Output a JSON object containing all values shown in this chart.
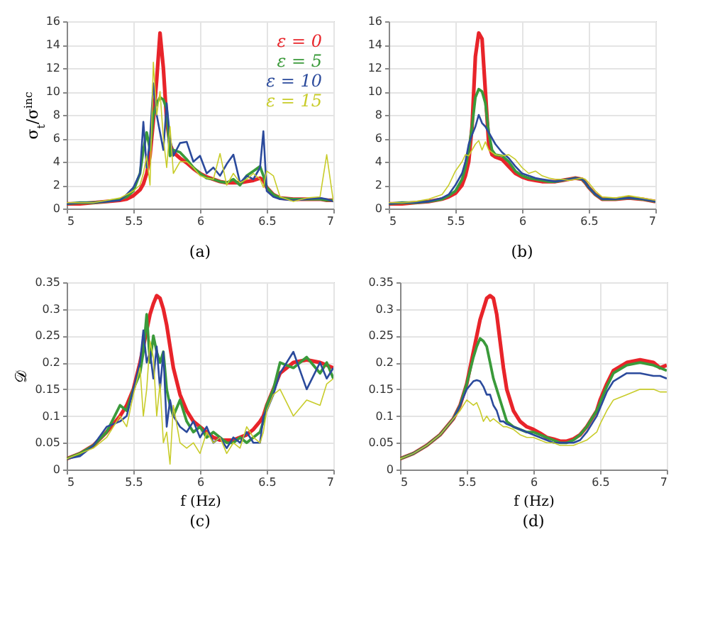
{
  "chart_data": [
    {
      "type": "line",
      "title": "(a)",
      "ylabel": "σ$_{t}$/σ$^{inc}$",
      "xlim": [
        5,
        7
      ],
      "xticks": [
        5,
        5.5,
        6,
        6.5,
        7
      ],
      "ylim": [
        0,
        16
      ],
      "yticks": [
        0,
        2,
        4,
        6,
        8,
        10,
        12,
        14,
        16
      ],
      "grid": true,
      "legend": "top right",
      "x": [
        5,
        5.1,
        5.2,
        5.3,
        5.4,
        5.45,
        5.5,
        5.55,
        5.575,
        5.6,
        5.625,
        5.65,
        5.675,
        5.7,
        5.725,
        5.75,
        5.775,
        5.8,
        5.85,
        5.9,
        5.95,
        6,
        6.05,
        6.1,
        6.15,
        6.2,
        6.25,
        6.3,
        6.35,
        6.4,
        6.45,
        6.475,
        6.5,
        6.55,
        6.6,
        6.7,
        6.8,
        6.9,
        6.95,
        7
      ],
      "series": [
        {
          "name": "ε = 0",
          "color": "#e8242a",
          "values": [
            0.4,
            0.4,
            0.5,
            0.6,
            0.7,
            0.8,
            1.1,
            1.6,
            2.1,
            3,
            4.5,
            7.5,
            11,
            15,
            12,
            7.5,
            5.5,
            4.8,
            4.3,
            3.9,
            3.4,
            3,
            2.7,
            2.5,
            2.3,
            2.2,
            2.2,
            2.2,
            2.3,
            2.4,
            2.6,
            2.4,
            1.8,
            1.2,
            0.9,
            0.8,
            0.8,
            0.8,
            0.7,
            0.7
          ]
        },
        {
          "name": "ε = 5",
          "color": "#3a9a3a",
          "values": [
            0.4,
            0.5,
            0.5,
            0.6,
            0.8,
            1,
            1.5,
            3,
            5,
            6.5,
            5,
            8,
            9,
            9.5,
            9.3,
            8.5,
            4.5,
            5,
            4.8,
            4.2,
            3.5,
            3,
            2.6,
            2.5,
            2.3,
            2.2,
            2.5,
            2,
            2.8,
            3.2,
            3.6,
            2.8,
            1.8,
            1.2,
            0.9,
            0.8,
            0.8,
            0.8,
            0.7,
            0.7
          ]
        },
        {
          "name": "ε = 10",
          "color": "#2b4a9c",
          "values": [
            0.4,
            0.5,
            0.5,
            0.6,
            0.7,
            1.2,
            1.8,
            3,
            7.4,
            3.5,
            6,
            10.7,
            8,
            6.5,
            5,
            9,
            6,
            4.5,
            5.6,
            5.7,
            4,
            4.5,
            3,
            3.5,
            2.8,
            3.8,
            4.6,
            2.2,
            2.8,
            2.5,
            3.5,
            6.6,
            1.5,
            1,
            0.8,
            0.7,
            0.8,
            0.9,
            0.8,
            0.6
          ]
        },
        {
          "name": "ε = 15",
          "color": "#c8cc2a",
          "values": [
            0.5,
            0.5,
            0.5,
            0.7,
            0.9,
            1.2,
            1.5,
            2,
            3,
            4.5,
            2,
            12.5,
            8,
            10,
            6,
            3.5,
            7,
            3,
            4,
            4,
            3.5,
            2.8,
            2.6,
            2.5,
            4.7,
            2,
            3,
            2.2,
            2.5,
            3,
            2.5,
            1.8,
            3.2,
            2.8,
            1,
            0.6,
            0.9,
            1,
            4.6,
            0.6
          ]
        }
      ]
    },
    {
      "type": "line",
      "title": "(b)",
      "xlim": [
        5,
        7
      ],
      "xticks": [
        5,
        5.5,
        6,
        6.5,
        7
      ],
      "ylim": [
        0,
        16
      ],
      "yticks": [
        0,
        2,
        4,
        6,
        8,
        10,
        12,
        14,
        16
      ],
      "grid": true,
      "x": [
        5,
        5.1,
        5.2,
        5.3,
        5.4,
        5.45,
        5.5,
        5.55,
        5.575,
        5.6,
        5.625,
        5.65,
        5.675,
        5.7,
        5.725,
        5.75,
        5.775,
        5.8,
        5.85,
        5.9,
        5.95,
        6,
        6.05,
        6.1,
        6.15,
        6.2,
        6.25,
        6.3,
        6.35,
        6.4,
        6.45,
        6.475,
        6.5,
        6.55,
        6.6,
        6.7,
        6.8,
        6.9,
        6.95,
        7
      ],
      "series": [
        {
          "color": "#e8242a",
          "values": [
            0.4,
            0.4,
            0.5,
            0.6,
            0.8,
            1,
            1.3,
            2,
            2.8,
            4,
            7,
            13,
            15,
            14.5,
            10,
            5.5,
            4.6,
            4.4,
            4.2,
            3.6,
            3,
            2.7,
            2.5,
            2.4,
            2.3,
            2.3,
            2.3,
            2.4,
            2.5,
            2.6,
            2.5,
            2.2,
            1.8,
            1.2,
            0.8,
            0.8,
            0.9,
            0.8,
            0.7,
            0.6
          ]
        },
        {
          "color": "#3a9a3a",
          "values": [
            0.4,
            0.5,
            0.5,
            0.6,
            0.8,
            1.1,
            1.5,
            2.5,
            3.5,
            5,
            7,
            9.5,
            10.2,
            10,
            9,
            6.5,
            5,
            4.6,
            4.5,
            4,
            3.2,
            2.8,
            2.6,
            2.5,
            2.4,
            2.3,
            2.3,
            2.4,
            2.5,
            2.6,
            2.5,
            2.2,
            1.8,
            1.2,
            0.8,
            0.8,
            0.9,
            0.8,
            0.7,
            0.6
          ]
        },
        {
          "color": "#2b4a9c",
          "values": [
            0.4,
            0.5,
            0.5,
            0.6,
            0.9,
            1.2,
            2,
            3,
            4,
            5.5,
            6.3,
            7,
            8,
            7.3,
            7,
            6.5,
            6,
            5.5,
            4.8,
            4.3,
            3.6,
            3,
            2.8,
            2.6,
            2.5,
            2.4,
            2.3,
            2.4,
            2.5,
            2.6,
            2.5,
            2.2,
            1.8,
            1.2,
            0.8,
            0.8,
            0.9,
            0.8,
            0.7,
            0.6
          ]
        },
        {
          "color": "#c8cc2a",
          "values": [
            0.5,
            0.5,
            0.6,
            0.8,
            1.2,
            2,
            3.2,
            4,
            4.6,
            4.5,
            5,
            5.5,
            5.8,
            5,
            5.7,
            5,
            4.8,
            4.6,
            4.5,
            4.6,
            4.2,
            3.5,
            3,
            3.2,
            2.8,
            2.6,
            2.5,
            2.5,
            2.4,
            2.5,
            2.6,
            2.5,
            2.2,
            1.5,
            1,
            0.9,
            1.1,
            0.9,
            0.8,
            0.7
          ]
        }
      ]
    },
    {
      "type": "line",
      "title": "(c)",
      "xlabel": "f (Hz)",
      "ylabel": "𝒟",
      "xlim": [
        5,
        7
      ],
      "xticks": [
        5,
        5.5,
        6,
        6.5,
        7
      ],
      "ylim": [
        0,
        0.35
      ],
      "yticks": [
        0,
        0.05,
        0.1,
        0.15,
        0.2,
        0.25,
        0.3,
        0.35
      ],
      "grid": true,
      "x": [
        5,
        5.1,
        5.2,
        5.3,
        5.4,
        5.45,
        5.5,
        5.55,
        5.575,
        5.6,
        5.625,
        5.65,
        5.675,
        5.7,
        5.725,
        5.75,
        5.775,
        5.8,
        5.85,
        5.9,
        5.95,
        6,
        6.05,
        6.1,
        6.15,
        6.2,
        6.25,
        6.3,
        6.35,
        6.4,
        6.45,
        6.475,
        6.5,
        6.55,
        6.6,
        6.7,
        6.8,
        6.9,
        6.95,
        7
      ],
      "series": [
        {
          "color": "#e8242a",
          "values": [
            0.02,
            0.03,
            0.045,
            0.07,
            0.1,
            0.12,
            0.15,
            0.2,
            0.23,
            0.26,
            0.29,
            0.31,
            0.325,
            0.32,
            0.3,
            0.27,
            0.23,
            0.19,
            0.14,
            0.11,
            0.09,
            0.08,
            0.07,
            0.06,
            0.055,
            0.055,
            0.055,
            0.06,
            0.065,
            0.075,
            0.09,
            0.1,
            0.12,
            0.15,
            0.18,
            0.2,
            0.205,
            0.2,
            0.195,
            0.19
          ]
        },
        {
          "color": "#3a9a3a",
          "values": [
            0.02,
            0.03,
            0.045,
            0.07,
            0.12,
            0.11,
            0.15,
            0.18,
            0.22,
            0.29,
            0.2,
            0.25,
            0.22,
            0.2,
            0.22,
            0.15,
            0.12,
            0.1,
            0.13,
            0.09,
            0.07,
            0.08,
            0.06,
            0.07,
            0.06,
            0.05,
            0.05,
            0.06,
            0.05,
            0.06,
            0.07,
            0.09,
            0.12,
            0.15,
            0.2,
            0.19,
            0.21,
            0.18,
            0.2,
            0.17
          ]
        },
        {
          "color": "#2b4a9c",
          "values": [
            0.02,
            0.025,
            0.045,
            0.08,
            0.09,
            0.1,
            0.15,
            0.2,
            0.26,
            0.2,
            0.22,
            0.17,
            0.23,
            0.15,
            0.22,
            0.08,
            0.13,
            0.1,
            0.08,
            0.07,
            0.09,
            0.06,
            0.08,
            0.05,
            0.06,
            0.04,
            0.06,
            0.05,
            0.07,
            0.05,
            0.05,
            0.1,
            0.11,
            0.14,
            0.18,
            0.22,
            0.15,
            0.2,
            0.17,
            0.19
          ]
        },
        {
          "color": "#c8cc2a",
          "values": [
            0.02,
            0.03,
            0.04,
            0.06,
            0.1,
            0.08,
            0.14,
            0.19,
            0.1,
            0.15,
            0.24,
            0.21,
            0.1,
            0.16,
            0.05,
            0.07,
            0.01,
            0.12,
            0.05,
            0.04,
            0.05,
            0.03,
            0.07,
            0.05,
            0.06,
            0.03,
            0.05,
            0.04,
            0.08,
            0.06,
            0.05,
            0.07,
            0.11,
            0.14,
            0.15,
            0.1,
            0.13,
            0.12,
            0.16,
            0.17
          ]
        }
      ]
    },
    {
      "type": "line",
      "title": "(d)",
      "xlabel": "f (Hz)",
      "xlim": [
        5,
        7
      ],
      "xticks": [
        5,
        5.5,
        6,
        6.5,
        7
      ],
      "ylim": [
        0,
        0.35
      ],
      "yticks": [
        0,
        0.05,
        0.1,
        0.15,
        0.2,
        0.25,
        0.3,
        0.35
      ],
      "grid": true,
      "x": [
        5,
        5.1,
        5.2,
        5.3,
        5.4,
        5.45,
        5.5,
        5.55,
        5.575,
        5.6,
        5.625,
        5.65,
        5.675,
        5.7,
        5.725,
        5.75,
        5.775,
        5.8,
        5.85,
        5.9,
        5.95,
        6,
        6.05,
        6.1,
        6.15,
        6.2,
        6.25,
        6.3,
        6.35,
        6.4,
        6.45,
        6.475,
        6.5,
        6.55,
        6.6,
        6.7,
        6.8,
        6.9,
        6.95,
        7
      ],
      "series": [
        {
          "color": "#e8242a",
          "values": [
            0.02,
            0.03,
            0.045,
            0.065,
            0.095,
            0.12,
            0.16,
            0.22,
            0.25,
            0.28,
            0.3,
            0.32,
            0.325,
            0.32,
            0.29,
            0.24,
            0.19,
            0.15,
            0.11,
            0.09,
            0.08,
            0.075,
            0.068,
            0.06,
            0.057,
            0.053,
            0.053,
            0.057,
            0.065,
            0.08,
            0.1,
            0.11,
            0.13,
            0.16,
            0.185,
            0.2,
            0.205,
            0.2,
            0.19,
            0.195
          ]
        },
        {
          "color": "#3a9a3a",
          "values": [
            0.02,
            0.03,
            0.045,
            0.065,
            0.095,
            0.12,
            0.16,
            0.21,
            0.23,
            0.245,
            0.24,
            0.23,
            0.2,
            0.17,
            0.15,
            0.13,
            0.11,
            0.09,
            0.08,
            0.075,
            0.07,
            0.07,
            0.065,
            0.06,
            0.055,
            0.05,
            0.05,
            0.055,
            0.065,
            0.08,
            0.1,
            0.11,
            0.125,
            0.155,
            0.18,
            0.195,
            0.2,
            0.195,
            0.19,
            0.185
          ]
        },
        {
          "color": "#2b4a9c",
          "values": [
            0.02,
            0.03,
            0.045,
            0.065,
            0.095,
            0.12,
            0.15,
            0.165,
            0.167,
            0.165,
            0.155,
            0.14,
            0.14,
            0.12,
            0.11,
            0.09,
            0.09,
            0.085,
            0.08,
            0.075,
            0.07,
            0.065,
            0.06,
            0.055,
            0.05,
            0.05,
            0.05,
            0.05,
            0.055,
            0.07,
            0.09,
            0.1,
            0.115,
            0.145,
            0.165,
            0.18,
            0.18,
            0.175,
            0.175,
            0.17
          ]
        },
        {
          "color": "#c8cc2a",
          "values": [
            0.02,
            0.03,
            0.045,
            0.065,
            0.095,
            0.11,
            0.13,
            0.12,
            0.125,
            0.11,
            0.09,
            0.1,
            0.09,
            0.095,
            0.09,
            0.085,
            0.08,
            0.08,
            0.075,
            0.065,
            0.06,
            0.06,
            0.055,
            0.05,
            0.05,
            0.045,
            0.045,
            0.045,
            0.05,
            0.055,
            0.065,
            0.07,
            0.085,
            0.11,
            0.13,
            0.14,
            0.15,
            0.15,
            0.145,
            0.145
          ]
        }
      ]
    }
  ]
}
